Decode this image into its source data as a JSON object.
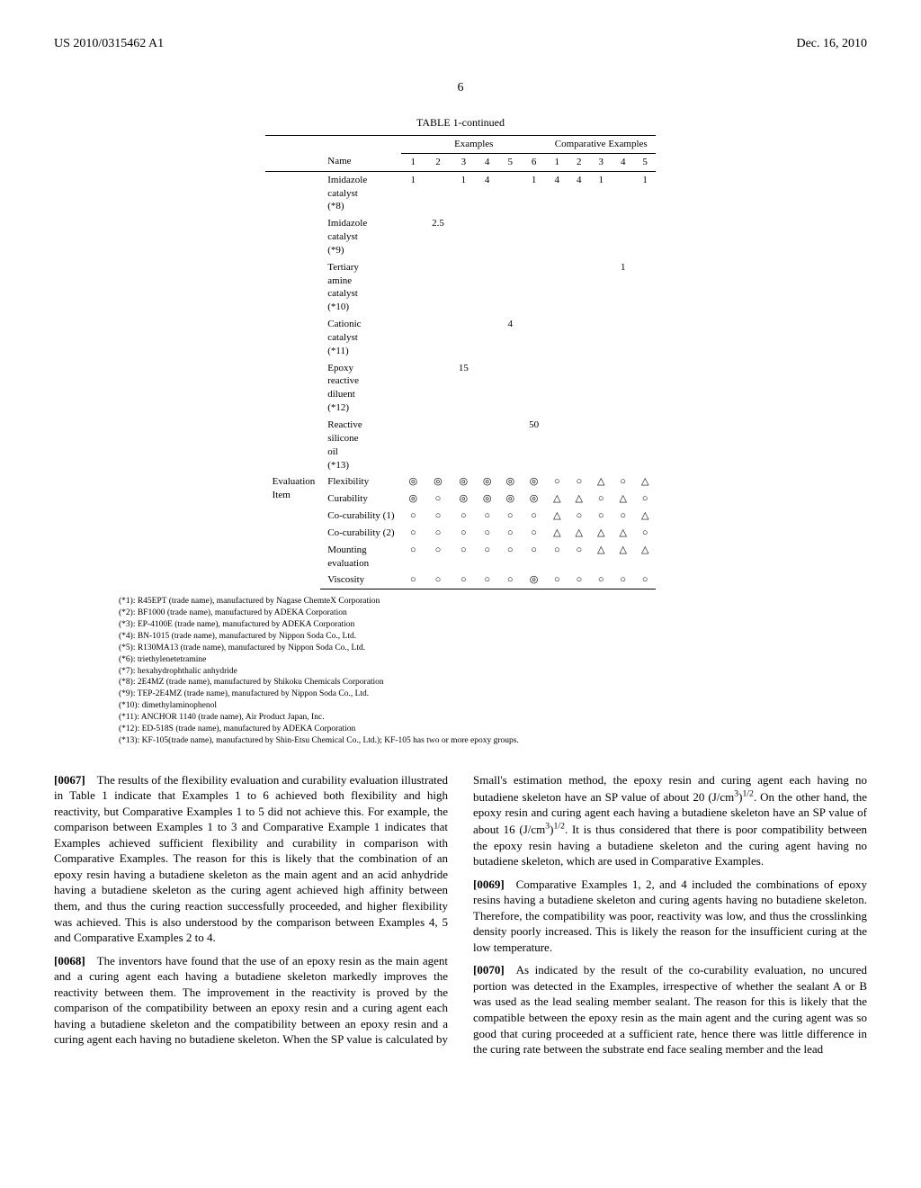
{
  "header": {
    "left": "US 2010/0315462 A1",
    "right": "Dec. 16, 2010"
  },
  "page_number": "6",
  "table": {
    "caption": "TABLE 1-continued",
    "group_headers": {
      "examples": "Examples",
      "comparative": "Comparative Examples"
    },
    "name_header": "Name",
    "example_cols": [
      "1",
      "2",
      "3",
      "4",
      "5",
      "6"
    ],
    "comparative_cols": [
      "1",
      "2",
      "3",
      "4",
      "5"
    ],
    "evaluation_label": "Evaluation Item",
    "ingredient_rows": [
      {
        "name": "Imidazole catalyst (*8)",
        "vals": [
          "1",
          "",
          "1",
          "4",
          "",
          "1",
          "4",
          "4",
          "1",
          "",
          "1"
        ]
      },
      {
        "name": "Imidazole catalyst (*9)",
        "vals": [
          "",
          "2.5",
          "",
          "",
          "",
          "",
          "",
          "",
          "",
          "",
          ""
        ]
      },
      {
        "name": "Tertiary amine catalyst (*10)",
        "vals": [
          "",
          "",
          "",
          "",
          "",
          "",
          "",
          "",
          "",
          "1",
          ""
        ]
      },
      {
        "name": "Cationic catalyst (*11)",
        "vals": [
          "",
          "",
          "",
          "",
          "4",
          "",
          "",
          "",
          "",
          "",
          ""
        ]
      },
      {
        "name": "Epoxy reactive diluent (*12)",
        "vals": [
          "",
          "",
          "15",
          "",
          "",
          "",
          "",
          "",
          "",
          "",
          ""
        ]
      },
      {
        "name": "Reactive silicone oil (*13)",
        "vals": [
          "",
          "",
          "",
          "",
          "",
          "50",
          "",
          "",
          "",
          "",
          ""
        ]
      }
    ],
    "evaluation_rows": [
      {
        "name": "Flexibility",
        "vals": [
          "◎",
          "◎",
          "◎",
          "◎",
          "◎",
          "◎",
          "○",
          "○",
          "△",
          "○",
          "△"
        ]
      },
      {
        "name": "Curability",
        "vals": [
          "◎",
          "○",
          "◎",
          "◎",
          "◎",
          "◎",
          "△",
          "△",
          "○",
          "△",
          "○"
        ]
      },
      {
        "name": "Co-curability (1)",
        "vals": [
          "○",
          "○",
          "○",
          "○",
          "○",
          "○",
          "△",
          "○",
          "○",
          "○",
          "△"
        ]
      },
      {
        "name": "Co-curability (2)",
        "vals": [
          "○",
          "○",
          "○",
          "○",
          "○",
          "○",
          "△",
          "△",
          "△",
          "△",
          "○"
        ]
      },
      {
        "name": "Mounting evaluation",
        "vals": [
          "○",
          "○",
          "○",
          "○",
          "○",
          "○",
          "○",
          "○",
          "△",
          "△",
          "△"
        ]
      },
      {
        "name": "Viscosity",
        "vals": [
          "○",
          "○",
          "○",
          "○",
          "○",
          "◎",
          "○",
          "○",
          "○",
          "○",
          "○"
        ]
      }
    ]
  },
  "footnotes": [
    "(*1): R45EPT (trade name), manufactured by Nagase ChemteX Corporation",
    "(*2): BF1000 (trade name), manufactured by ADEKA Corporation",
    "(*3): EP-4100E (trade name), manufactured by ADEKA Corporation",
    "(*4): BN-1015 (trade name), manufactured by Nippon Soda Co., Ltd.",
    "(*5): R130MA13 (trade name), manufactured by Nippon Soda Co., Ltd.",
    "(*6): triethylenetetramine",
    "(*7): hexahydrophthalic anhydride",
    "(*8): 2E4MZ (trade name), manufactured by Shikoku Chemicals Corporation",
    "(*9): TEP-2E4MZ (trade name), manufactured by Nippon Soda Co., Ltd.",
    "(*10): dimethylaminophenol",
    "(*11): ANCHOR 1140 (trade name), Air Product Japan, Inc.",
    "(*12): ED-518S (trade name), manufactured by ADEKA Corporation",
    "(*13): KF-105(trade name), manufactured by Shin-Etsu Chemical Co., Ltd.); KF-105 has two or more epoxy groups."
  ],
  "paragraphs": [
    {
      "num": "[0067]",
      "text": "The results of the flexibility evaluation and curability evaluation illustrated in Table 1 indicate that Examples 1 to 6 achieved both flexibility and high reactivity, but Comparative Examples 1 to 5 did not achieve this. For example, the comparison between Examples 1 to 3 and Comparative Example 1 indicates that Examples achieved sufficient flexibility and curability in comparison with Comparative Examples. The reason for this is likely that the combination of an epoxy resin having a butadiene skeleton as the main agent and an acid anhydride having a butadiene skeleton as the curing agent achieved high affinity between them, and thus the curing reaction successfully proceeded, and higher flexibility was achieved. This is also understood by the comparison between Examples 4, 5 and Comparative Examples 2 to 4."
    },
    {
      "num": "[0068]",
      "text": "The inventors have found that the use of an epoxy resin as the main agent and a curing agent each having a butadiene skeleton markedly improves the reactivity between them. The improvement in the reactivity is proved by the comparison of the compatibility between an epoxy resin and a curing agent each having a butadiene skeleton and the compatibility between an epoxy resin and a curing agent each having no butadiene skeleton. When the SP value is calculated by Small's estimation method, the epoxy resin and curing agent each having no butadiene skeleton have an SP value of about 20 (J/cm³)¹ᐟ². On the other hand, the epoxy resin and curing agent each having a butadiene skeleton have an SP value of about 16 (J/cm³)¹ᐟ². It is thus considered that there is poor compatibility between the epoxy resin having a butadiene skeleton and the curing agent having no butadiene skeleton, which are used in Comparative Examples."
    },
    {
      "num": "[0069]",
      "text": "Comparative Examples 1, 2, and 4 included the combinations of epoxy resins having a butadiene skeleton and curing agents having no butadiene skeleton. Therefore, the compatibility was poor, reactivity was low, and thus the crosslinking density poorly increased. This is likely the reason for the insufficient curing at the low temperature."
    },
    {
      "num": "[0070]",
      "text": "As indicated by the result of the co-curability evaluation, no uncured portion was detected in the Examples, irrespective of whether the sealant A or B was used as the lead sealing member sealant. The reason for this is likely that the compatible between the epoxy resin as the main agent and the curing agent was so good that curing proceeded at a sufficient rate, hence there was little difference in the curing rate between the substrate end face sealing member and the lead"
    }
  ]
}
